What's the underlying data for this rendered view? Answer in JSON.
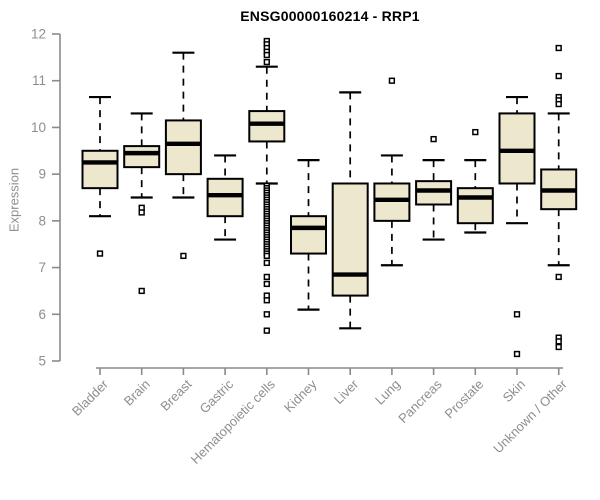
{
  "chart_data": {
    "type": "boxplot",
    "title": "ENSG00000160214 - RRP1",
    "ylabel": "Expression",
    "xlabel": "",
    "ylim": [
      5,
      12
    ],
    "yticks": [
      5,
      6,
      7,
      8,
      9,
      10,
      11,
      12
    ],
    "grid": false,
    "legend": "none",
    "colors": {
      "box_fill": "#EDE7CD",
      "box_border": "#000000",
      "median": "#000000",
      "whisker": "#000000",
      "outlier_stroke": "#000000",
      "axis": "#8a8a8a",
      "tick_label": "#8e8e8e",
      "title": "#000000",
      "background": "#ffffff"
    },
    "categories": [
      "Bladder",
      "Brain",
      "Breast",
      "Gastric",
      "Hematopoietic cells",
      "Kidney",
      "Liver",
      "Lung",
      "Pancreas",
      "Prostate",
      "Skin",
      "Unknown / Other"
    ],
    "boxes": [
      {
        "label": "Bladder",
        "low": 8.1,
        "q1": 8.7,
        "median": 9.25,
        "q3": 9.5,
        "high": 10.65,
        "outliers": [
          7.3
        ]
      },
      {
        "label": "Brain",
        "low": 8.5,
        "q1": 9.15,
        "median": 9.45,
        "q3": 9.6,
        "high": 10.3,
        "outliers": [
          8.28,
          8.18,
          6.5
        ]
      },
      {
        "label": "Breast",
        "low": 8.5,
        "q1": 9.0,
        "median": 9.65,
        "q3": 10.15,
        "high": 11.6,
        "outliers": [
          7.25
        ]
      },
      {
        "label": "Gastric",
        "low": 7.6,
        "q1": 8.1,
        "median": 8.55,
        "q3": 8.9,
        "high": 9.4,
        "outliers": []
      },
      {
        "label": "Hematopoietic cells",
        "low": 8.8,
        "q1": 9.7,
        "median": 10.08,
        "q3": 10.35,
        "high": 11.3,
        "outliers": [
          11.85,
          11.78,
          11.7,
          11.62,
          11.55,
          11.4,
          8.75,
          8.7,
          8.65,
          8.6,
          8.55,
          8.5,
          8.45,
          8.4,
          8.35,
          8.3,
          8.25,
          8.2,
          8.15,
          8.1,
          8.05,
          8.0,
          7.95,
          7.9,
          7.85,
          7.8,
          7.75,
          7.7,
          7.65,
          7.6,
          7.55,
          7.5,
          7.45,
          7.4,
          7.35,
          7.3,
          7.25,
          7.1,
          6.8,
          6.65,
          6.4,
          6.3,
          6.0,
          5.65
        ]
      },
      {
        "label": "Kidney",
        "low": 6.1,
        "q1": 7.3,
        "median": 7.85,
        "q3": 8.1,
        "high": 9.3,
        "outliers": []
      },
      {
        "label": "Liver",
        "low": 5.7,
        "q1": 6.4,
        "median": 6.85,
        "q3": 8.8,
        "high": 10.75,
        "outliers": []
      },
      {
        "label": "Lung",
        "low": 7.05,
        "q1": 8.0,
        "median": 8.45,
        "q3": 8.8,
        "high": 9.4,
        "outliers": [
          11.0
        ]
      },
      {
        "label": "Pancreas",
        "low": 7.6,
        "q1": 8.35,
        "median": 8.65,
        "q3": 8.85,
        "high": 9.3,
        "outliers": [
          9.75
        ]
      },
      {
        "label": "Prostate",
        "low": 7.75,
        "q1": 7.95,
        "median": 8.5,
        "q3": 8.7,
        "high": 9.3,
        "outliers": [
          9.9
        ]
      },
      {
        "label": "Skin",
        "low": 7.95,
        "q1": 8.8,
        "median": 9.5,
        "q3": 10.3,
        "high": 10.65,
        "outliers": [
          6.0,
          5.15
        ]
      },
      {
        "label": "Unknown / Other",
        "low": 7.05,
        "q1": 8.25,
        "median": 8.65,
        "q3": 9.1,
        "high": 10.3,
        "outliers": [
          11.7,
          11.1,
          10.65,
          10.58,
          10.5,
          6.8,
          5.5,
          5.42,
          5.3
        ]
      }
    ]
  }
}
